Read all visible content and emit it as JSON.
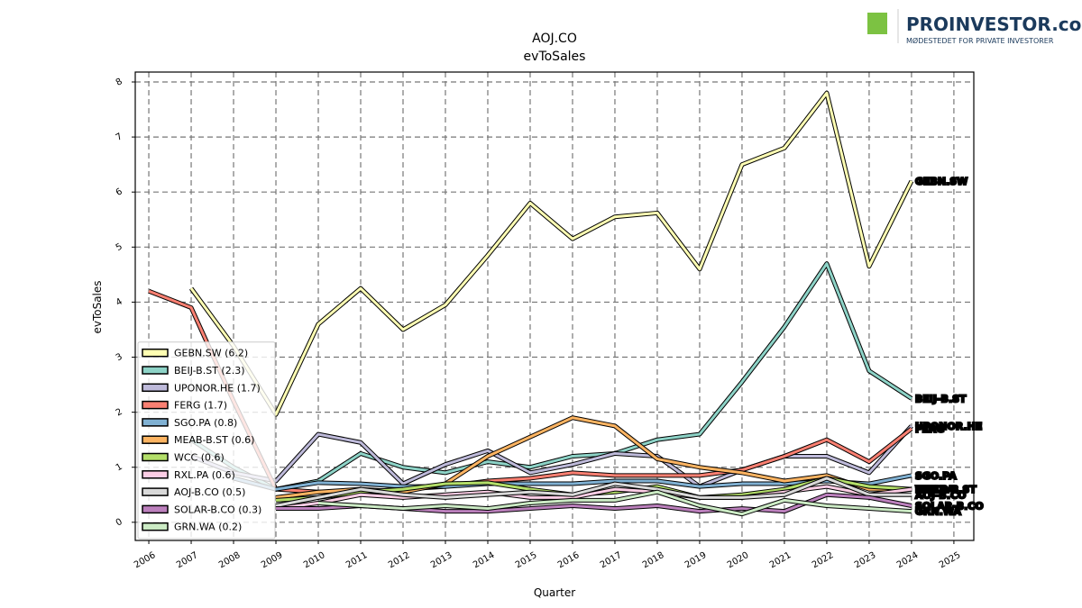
{
  "logo": {
    "name": "PROINVESTOR.com",
    "tagline": "MØDESTEDET FOR PRIVATE INVESTORER"
  },
  "chart_data": {
    "type": "line",
    "title": "AOJ.CO",
    "subtitle": "evToSales",
    "x_label": "Quarter",
    "y_label": "evToSales",
    "x": [
      2006,
      2007,
      2008,
      2009,
      2010,
      2011,
      2012,
      2013,
      2014,
      2015,
      2016,
      2017,
      2018,
      2019,
      2020,
      2021,
      2022,
      2023,
      2024
    ],
    "xlim": [
      2005.68,
      2025.47
    ],
    "xticks": [
      2006,
      2007,
      2008,
      2009,
      2010,
      2011,
      2012,
      2013,
      2014,
      2015,
      2016,
      2017,
      2018,
      2019,
      2020,
      2021,
      2022,
      2023,
      2024,
      2025
    ],
    "ylim": [
      -0.33,
      8.18
    ],
    "yticks": [
      0,
      1,
      2,
      3,
      4,
      5,
      6,
      7,
      8
    ],
    "grid": true,
    "legend": "lower left",
    "series": [
      {
        "name": "GEBN.SW (6.2)",
        "label": "GEBN.SW",
        "color": "#ffffb3",
        "values": [
          null,
          4.25,
          3.2,
          1.96,
          3.6,
          4.25,
          3.5,
          3.95,
          4.85,
          5.8,
          5.15,
          5.55,
          5.62,
          4.6,
          6.5,
          6.8,
          7.8,
          4.65,
          6.2
        ]
      },
      {
        "name": "BEIJ-B.ST (2.3)",
        "label": "BEIJ-B.ST",
        "color": "#8dd3c7",
        "values": [
          null,
          1.5,
          1.0,
          0.6,
          0.75,
          1.25,
          1.0,
          0.9,
          1.1,
          1.0,
          1.2,
          1.25,
          1.5,
          1.6,
          2.55,
          3.55,
          4.7,
          2.75,
          2.25
        ]
      },
      {
        "name": "UPONOR.HE (1.7)",
        "label": "UPONOR.HE",
        "color": "#bebada",
        "values": [
          null,
          1.2,
          0.9,
          0.75,
          1.6,
          1.45,
          0.7,
          1.05,
          1.3,
          0.9,
          1.05,
          1.25,
          1.2,
          0.65,
          0.95,
          1.2,
          1.2,
          0.9,
          1.75
        ]
      },
      {
        "name": "FERG (1.7)",
        "label": "FERG",
        "color": "#fb8072",
        "values": [
          4.2,
          3.9,
          2.2,
          0.6,
          0.55,
          0.55,
          0.6,
          0.65,
          0.75,
          0.8,
          0.9,
          0.85,
          0.85,
          0.85,
          0.95,
          1.2,
          1.5,
          1.1,
          1.7
        ]
      },
      {
        "name": "SGO.PA (0.8)",
        "label": "SGO.PA",
        "color": "#80b1d3",
        "values": [
          null,
          null,
          0.8,
          0.6,
          0.72,
          0.7,
          0.65,
          0.65,
          0.7,
          0.7,
          0.7,
          0.75,
          0.75,
          0.65,
          0.7,
          0.7,
          0.75,
          0.7,
          0.85
        ]
      },
      {
        "name": "MEAB-B.ST (0.6)",
        "label": "MEAB-B.ST",
        "color": "#fdb462",
        "values": [
          null,
          null,
          null,
          0.45,
          0.55,
          0.6,
          0.55,
          0.7,
          1.2,
          1.55,
          1.9,
          1.75,
          1.15,
          1.0,
          0.9,
          0.75,
          0.85,
          0.6,
          0.6
        ]
      },
      {
        "name": "WCC (0.6)",
        "label": "WCC",
        "color": "#b3de69",
        "values": [
          null,
          null,
          null,
          0.4,
          0.45,
          0.55,
          0.6,
          0.7,
          0.72,
          0.6,
          0.5,
          0.55,
          0.65,
          0.45,
          0.5,
          0.6,
          0.8,
          0.65,
          0.6
        ]
      },
      {
        "name": "RXL.PA (0.6)",
        "label": "RXL.PA",
        "color": "#fccde5",
        "values": [
          null,
          null,
          null,
          0.25,
          0.35,
          0.5,
          0.45,
          0.5,
          0.55,
          0.45,
          0.45,
          0.6,
          0.55,
          0.45,
          0.45,
          0.55,
          0.65,
          0.5,
          0.6
        ]
      },
      {
        "name": "AOJ-B.CO (0.5)",
        "label": "AOJ-B.CO",
        "color": "#d9d9d9",
        "values": [
          null,
          null,
          null,
          0.3,
          0.45,
          0.6,
          0.5,
          0.45,
          0.5,
          0.55,
          0.5,
          0.7,
          0.6,
          0.45,
          0.45,
          0.5,
          0.8,
          0.5,
          0.5
        ]
      },
      {
        "name": "SOLAR-B.CO (0.3)",
        "label": "SOLAR-B.CO",
        "color": "#bc80bd",
        "values": [
          null,
          null,
          null,
          0.25,
          0.25,
          0.3,
          0.25,
          0.2,
          0.2,
          0.25,
          0.3,
          0.25,
          0.3,
          0.2,
          0.25,
          0.2,
          0.5,
          0.45,
          0.3
        ]
      },
      {
        "name": "GRN.WA (0.2)",
        "label": "GRN.WA",
        "color": "#ccebc5",
        "values": [
          null,
          null,
          null,
          null,
          0.35,
          0.3,
          0.25,
          0.3,
          0.25,
          0.35,
          0.4,
          0.4,
          0.55,
          0.3,
          0.15,
          0.4,
          0.3,
          0.25,
          0.2
        ]
      }
    ]
  }
}
